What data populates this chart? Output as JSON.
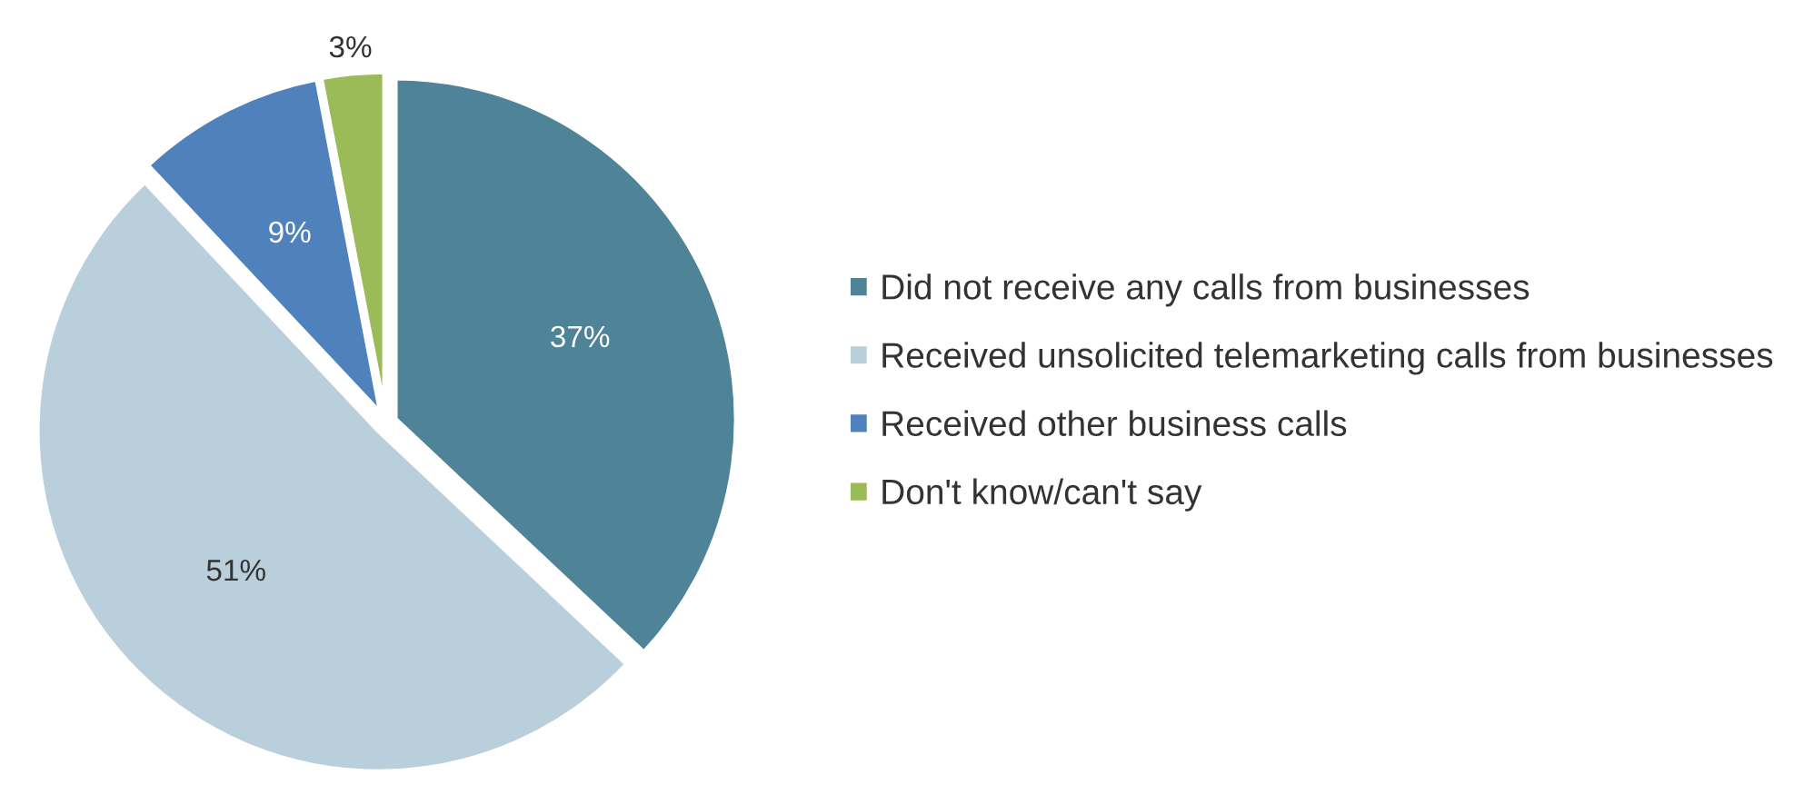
{
  "chart_data": {
    "type": "pie",
    "categories": [
      "Did not receive any calls from businesses",
      "Received unsolicited telemarketing calls from businesses",
      "Received other business calls",
      "Don't know/can't say"
    ],
    "values": [
      37,
      51,
      9,
      3
    ],
    "value_labels": [
      "37%",
      "51%",
      "9%",
      "3%"
    ],
    "colors": [
      "#4f8397",
      "#b9cfdb",
      "#4f81bd",
      "#9bbb59"
    ],
    "legend": "right"
  }
}
